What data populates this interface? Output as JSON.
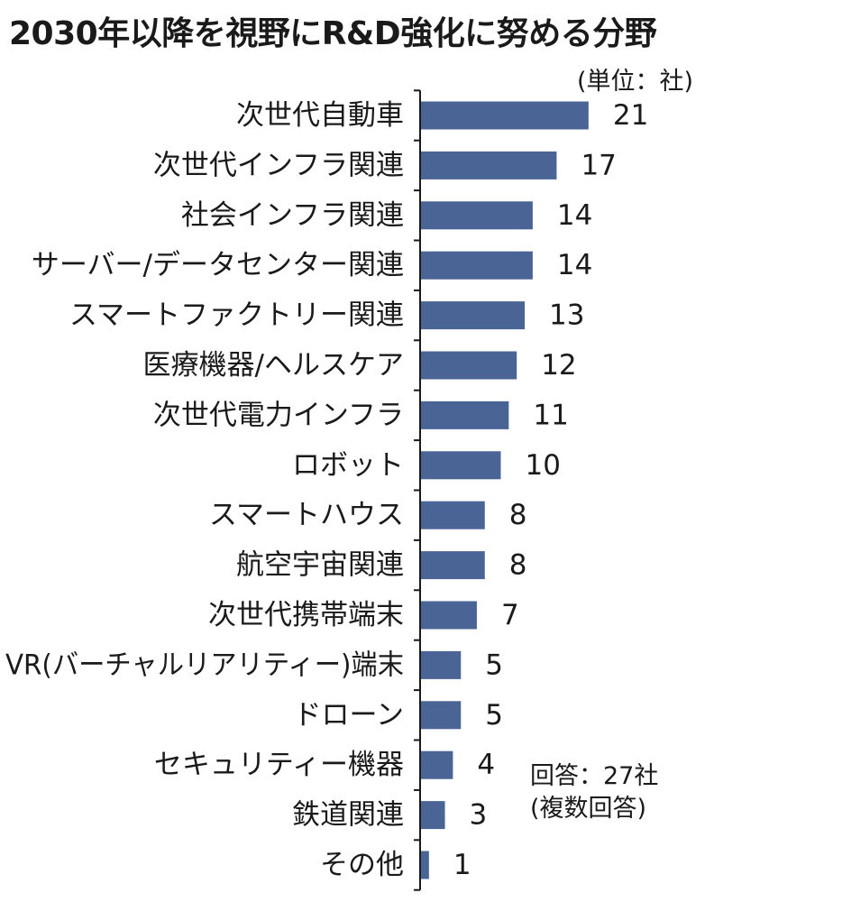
{
  "chart_data": {
    "type": "bar",
    "orientation": "horizontal",
    "title": "2030年以降を視野にR&D強化に努める分野",
    "unit": "(単位：社)",
    "categories": [
      "次世代自動車",
      "次世代インフラ関連",
      "社会インフラ関連",
      "サーバー/データセンター関連",
      "スマートファクトリー関連",
      "医療機器/ヘルスケア",
      "次世代電力インフラ",
      "ロボット",
      "スマートハウス",
      "航空宇宙関連",
      "次世代携帯端末",
      "VR(バーチャルリアリティー)端末",
      "ドローン",
      "セキュリティー機器",
      "鉄道関連",
      "その他"
    ],
    "values": [
      21,
      17,
      14,
      14,
      13,
      12,
      11,
      10,
      8,
      8,
      7,
      5,
      5,
      4,
      3,
      1
    ],
    "xlim": [
      0,
      22
    ],
    "grid": false,
    "legend": "none",
    "bar_color": "#4a6595",
    "axis_color": "#1a1a1a",
    "notes": [
      "回答：27社",
      "(複数回答)"
    ]
  }
}
